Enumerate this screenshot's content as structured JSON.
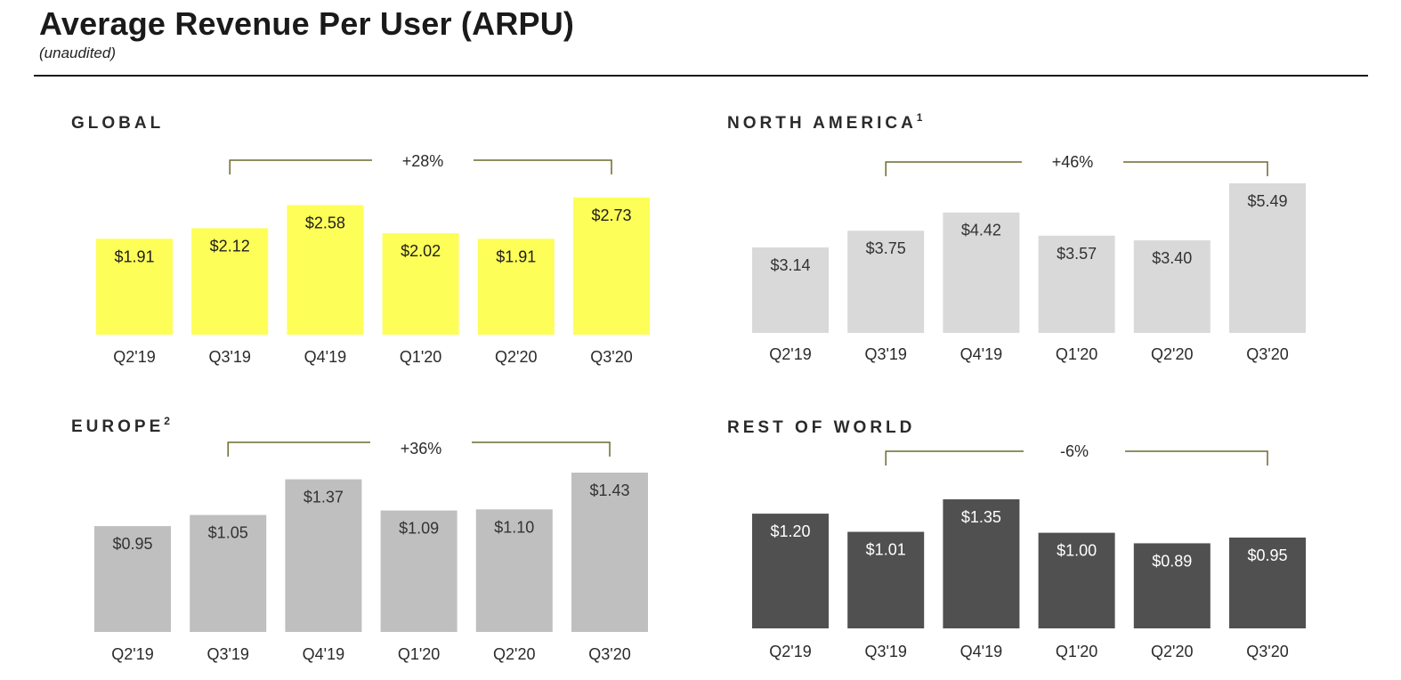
{
  "header": {
    "title": "Average Revenue Per User (ARPU)",
    "subtitle": "(unaudited)"
  },
  "colors": {
    "global": "#fefe58",
    "north_america": "#d9d9d9",
    "europe": "#bfbfbf",
    "rest_of_world": "#505050",
    "bracket": "#6b6a2e"
  },
  "chart_data": [
    {
      "id": "global",
      "type": "bar",
      "title": "GLOBAL",
      "footnote": "",
      "categories": [
        "Q2'19",
        "Q3'19",
        "Q4'19",
        "Q1'20",
        "Q2'20",
        "Q3'20"
      ],
      "values": [
        1.91,
        2.12,
        2.58,
        2.02,
        1.91,
        2.73
      ],
      "labels": [
        "$1.91",
        "$2.12",
        "$2.58",
        "$2.02",
        "$1.91",
        "$2.73"
      ],
      "growth": "+28%",
      "growth_from": "Q3'19",
      "growth_to": "Q3'20",
      "bar_color": "#fefe58",
      "label_color": "#1e1e1e"
    },
    {
      "id": "north_america",
      "type": "bar",
      "title": "NORTH AMERICA",
      "footnote": "1",
      "categories": [
        "Q2'19",
        "Q3'19",
        "Q4'19",
        "Q1'20",
        "Q2'20",
        "Q3'20"
      ],
      "values": [
        3.14,
        3.75,
        4.42,
        3.57,
        3.4,
        5.49
      ],
      "labels": [
        "$3.14",
        "$3.75",
        "$4.42",
        "$3.57",
        "$3.40",
        "$5.49"
      ],
      "growth": "+46%",
      "growth_from": "Q3'19",
      "growth_to": "Q3'20",
      "bar_color": "#d9d9d9",
      "label_color": "#333333"
    },
    {
      "id": "europe",
      "type": "bar",
      "title": "EUROPE",
      "footnote": "2",
      "categories": [
        "Q2'19",
        "Q3'19",
        "Q4'19",
        "Q1'20",
        "Q2'20",
        "Q3'20"
      ],
      "values": [
        0.95,
        1.05,
        1.37,
        1.09,
        1.1,
        1.43
      ],
      "labels": [
        "$0.95",
        "$1.05",
        "$1.37",
        "$1.09",
        "$1.10",
        "$1.43"
      ],
      "growth": "+36%",
      "growth_from": "Q3'19",
      "growth_to": "Q3'20",
      "bar_color": "#bfbfbf",
      "label_color": "#333333"
    },
    {
      "id": "rest_of_world",
      "type": "bar",
      "title": "REST OF WORLD",
      "footnote": "",
      "categories": [
        "Q2'19",
        "Q3'19",
        "Q4'19",
        "Q1'20",
        "Q2'20",
        "Q3'20"
      ],
      "values": [
        1.2,
        1.01,
        1.35,
        1.0,
        0.89,
        0.95
      ],
      "labels": [
        "$1.20",
        "$1.01",
        "$1.35",
        "$1.00",
        "$0.89",
        "$0.95"
      ],
      "growth": "-6%",
      "growth_from": "Q3'19",
      "growth_to": "Q3'20",
      "bar_color": "#505050",
      "label_color": "#ffffff"
    }
  ]
}
